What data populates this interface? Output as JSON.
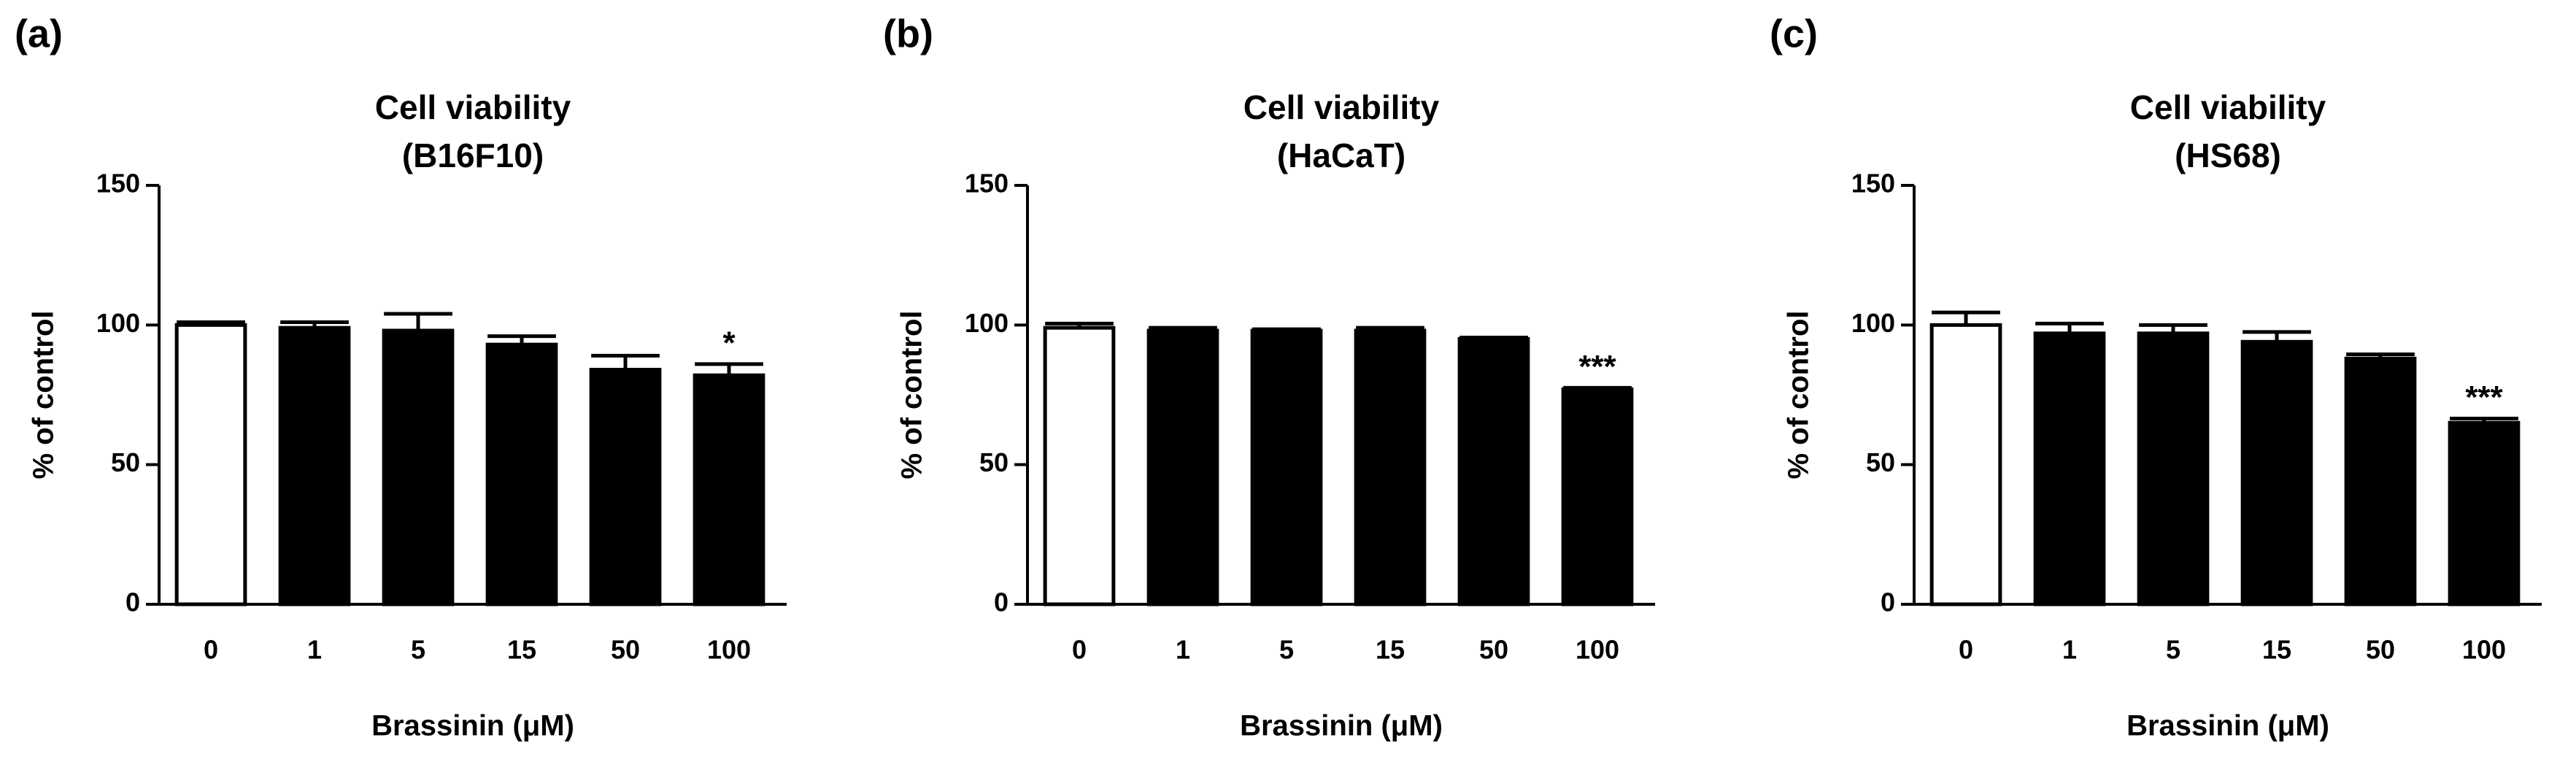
{
  "chart_data": [
    {
      "type": "bar",
      "panel_label": "(a)",
      "title": [
        "Cell viability",
        "(B16F10)"
      ],
      "x_label": "Brassinin (μM)",
      "y_label": "% of control",
      "categories": [
        "0",
        "1",
        "5",
        "15",
        "50",
        "100"
      ],
      "values": [
        100,
        99,
        98,
        93,
        84,
        82
      ],
      "errors": [
        1,
        2,
        6,
        3,
        5,
        4
      ],
      "colors": [
        "#ffffff",
        "#000000",
        "#000000",
        "#000000",
        "#000000",
        "#000000"
      ],
      "value_annotations": [
        null,
        null,
        null,
        null,
        null,
        "*"
      ],
      "ylim": [
        0,
        150
      ],
      "yticks": [
        0,
        50,
        100,
        150
      ]
    },
    {
      "type": "bar",
      "panel_label": "(b)",
      "title": [
        "Cell viability",
        "(HaCaT)"
      ],
      "x_label": "Brassinin (μM)",
      "y_label": "% of control",
      "categories": [
        "0",
        "1",
        "5",
        "15",
        "50",
        "100"
      ],
      "values": [
        99,
        98,
        98,
        98,
        95,
        77
      ],
      "errors": [
        1.5,
        1,
        0.5,
        1,
        0.5,
        0.5
      ],
      "colors": [
        "#ffffff",
        "#000000",
        "#000000",
        "#000000",
        "#000000",
        "#000000"
      ],
      "value_annotations": [
        null,
        null,
        null,
        null,
        null,
        "***"
      ],
      "ylim": [
        0,
        150
      ],
      "yticks": [
        0,
        50,
        100,
        150
      ]
    },
    {
      "type": "bar",
      "panel_label": "(c)",
      "title": [
        "Cell viability",
        "(HS68)"
      ],
      "x_label": "Brassinin (μM)",
      "y_label": "% of control",
      "categories": [
        "0",
        "1",
        "5",
        "15",
        "50",
        "100"
      ],
      "values": [
        100,
        97,
        97,
        94,
        88,
        65
      ],
      "errors": [
        4.5,
        3.5,
        3,
        3.5,
        1.5,
        1.5
      ],
      "colors": [
        "#ffffff",
        "#000000",
        "#000000",
        "#000000",
        "#000000",
        "#000000"
      ],
      "value_annotations": [
        null,
        null,
        null,
        null,
        null,
        "***"
      ],
      "ylim": [
        0,
        150
      ],
      "yticks": [
        0,
        50,
        100,
        150
      ]
    }
  ]
}
